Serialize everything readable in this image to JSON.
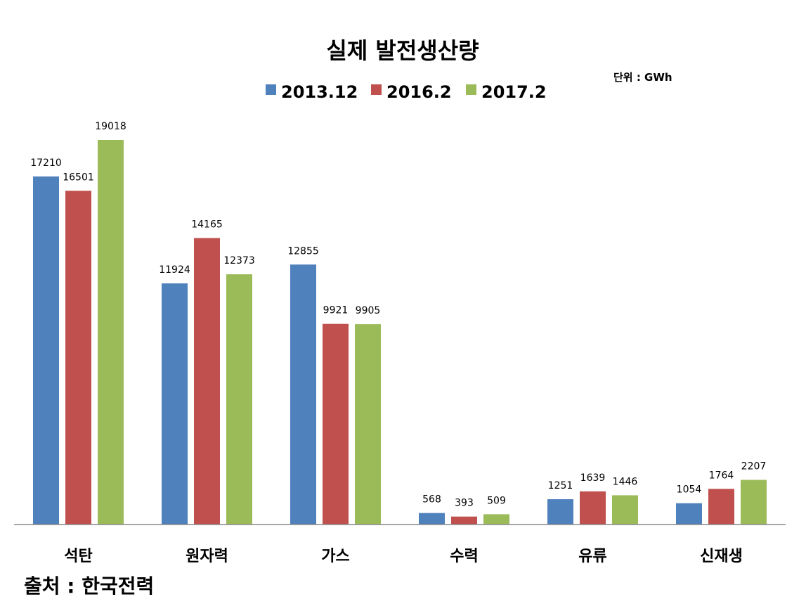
{
  "chart_data": {
    "type": "bar",
    "title": "실제 발전생산량",
    "unit_note": "단위 : GWh",
    "categories": [
      "석탄",
      "원자력",
      "가스",
      "수력",
      "유류",
      "신재생"
    ],
    "series": [
      {
        "name": "2013.12",
        "color": "#4f81bd",
        "values": [
          17210,
          11924,
          12855,
          568,
          1251,
          1054
        ]
      },
      {
        "name": "2016.2",
        "color": "#c0504d",
        "values": [
          16501,
          14165,
          9921,
          393,
          1639,
          1764
        ]
      },
      {
        "name": "2017.2",
        "color": "#9bbb59",
        "values": [
          19018,
          12373,
          9905,
          509,
          1446,
          2207
        ]
      }
    ],
    "ylim": [
      0,
      19018
    ],
    "grid": false,
    "legend_position": "top"
  },
  "source": "출처 : 한국전력"
}
